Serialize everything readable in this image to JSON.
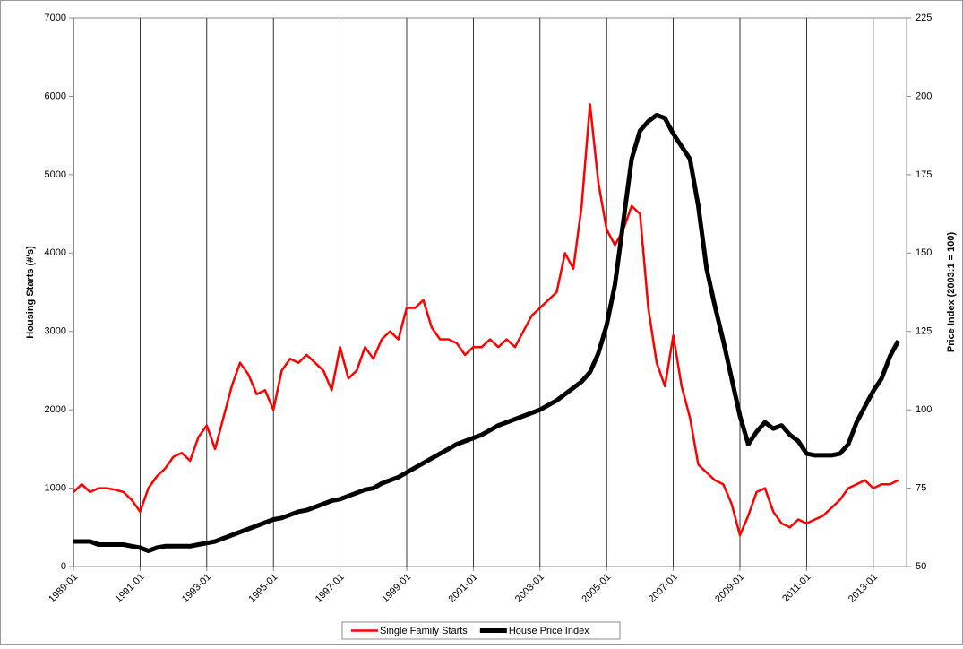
{
  "chart_data": {
    "type": "line",
    "y_label": "Housing Starts (#'s)",
    "y2_label": "Price Index (2003:1 = 100)",
    "x": [
      "1989-01",
      "1989-04",
      "1989-07",
      "1989-10",
      "1990-01",
      "1990-04",
      "1990-07",
      "1990-10",
      "1991-01",
      "1991-04",
      "1991-07",
      "1991-10",
      "1992-01",
      "1992-04",
      "1992-07",
      "1992-10",
      "1993-01",
      "1993-04",
      "1993-07",
      "1993-10",
      "1994-01",
      "1994-04",
      "1994-07",
      "1994-10",
      "1995-01",
      "1995-04",
      "1995-07",
      "1995-10",
      "1996-01",
      "1996-04",
      "1996-07",
      "1996-10",
      "1997-01",
      "1997-04",
      "1997-07",
      "1997-10",
      "1998-01",
      "1998-04",
      "1998-07",
      "1998-10",
      "1999-01",
      "1999-04",
      "1999-07",
      "1999-10",
      "2000-01",
      "2000-04",
      "2000-07",
      "2000-10",
      "2001-01",
      "2001-04",
      "2001-07",
      "2001-10",
      "2002-01",
      "2002-04",
      "2002-07",
      "2002-10",
      "2003-01",
      "2003-04",
      "2003-07",
      "2003-10",
      "2004-01",
      "2004-04",
      "2004-07",
      "2004-10",
      "2005-01",
      "2005-04",
      "2005-07",
      "2005-10",
      "2006-01",
      "2006-04",
      "2006-07",
      "2006-10",
      "2007-01",
      "2007-04",
      "2007-07",
      "2007-10",
      "2008-01",
      "2008-04",
      "2008-07",
      "2008-10",
      "2009-01",
      "2009-04",
      "2009-07",
      "2009-10",
      "2010-01",
      "2010-04",
      "2010-07",
      "2010-10",
      "2011-01",
      "2011-04",
      "2011-07",
      "2011-10",
      "2012-01",
      "2012-04",
      "2012-07",
      "2012-10",
      "2013-01",
      "2013-04",
      "2013-07",
      "2013-10"
    ],
    "series": [
      {
        "name": "Single Family Starts",
        "color": "#ff0000",
        "axis": "y",
        "values": [
          950,
          1050,
          950,
          1000,
          1000,
          980,
          950,
          850,
          700,
          1000,
          1150,
          1250,
          1400,
          1450,
          1350,
          1650,
          1800,
          1500,
          1900,
          2300,
          2600,
          2450,
          2200,
          2250,
          2000,
          2500,
          2650,
          2600,
          2700,
          2600,
          2500,
          2250,
          2800,
          2400,
          2500,
          2800,
          2650,
          2900,
          3000,
          2900,
          3300,
          3300,
          3400,
          3050,
          2900,
          2900,
          2850,
          2700,
          2800,
          2800,
          2900,
          2800,
          2900,
          2800,
          3000,
          3200,
          3300,
          3400,
          3500,
          4000,
          3800,
          4600,
          5900,
          4900,
          4300,
          4100,
          4300,
          4600,
          4500,
          3300,
          2600,
          2300,
          2950,
          2300,
          1900,
          1300,
          1200,
          1100,
          1050,
          800,
          400,
          650,
          950,
          1000,
          700,
          550,
          500,
          600,
          550,
          600,
          650,
          750,
          850,
          1000,
          1050,
          1100,
          1000,
          1050,
          1050,
          1100
        ]
      },
      {
        "name": "House Price Index",
        "color": "#000000",
        "axis": "y2",
        "values": [
          58,
          58,
          58,
          57,
          57,
          57,
          57,
          56.5,
          56,
          55,
          56,
          56.5,
          56.5,
          56.5,
          56.5,
          57,
          57.5,
          58,
          59,
          60,
          61,
          62,
          63,
          64,
          65,
          65.5,
          66.5,
          67.5,
          68,
          69,
          70,
          71,
          71.5,
          72.5,
          73.5,
          74.5,
          75,
          76.5,
          77.5,
          78.5,
          80,
          81.5,
          83,
          84.5,
          86,
          87.5,
          89,
          90,
          91,
          92,
          93.5,
          95,
          96,
          97,
          98,
          99,
          100,
          101.5,
          103,
          105,
          107,
          109,
          112,
          118,
          127,
          140,
          160,
          180,
          189,
          192,
          194,
          193,
          188,
          184,
          180,
          165,
          145,
          133,
          122,
          110,
          98,
          89,
          93,
          96,
          94,
          95,
          92,
          90,
          86,
          85.5,
          85.5,
          85.5,
          86,
          89,
          96,
          101,
          106,
          110,
          117,
          122
        ]
      }
    ],
    "xlim": [
      "1989-01",
      "2014-01"
    ],
    "xticks": [
      "1989-01",
      "1991-01",
      "1993-01",
      "1995-01",
      "1997-01",
      "1999-01",
      "2001-01",
      "2003-01",
      "2005-01",
      "2007-01",
      "2009-01",
      "2011-01",
      "2013-01"
    ],
    "ylim": [
      0,
      7000
    ],
    "yticks": [
      0,
      1000,
      2000,
      3000,
      4000,
      5000,
      6000,
      7000
    ],
    "y2lim": [
      50,
      225
    ],
    "y2ticks": [
      50,
      75,
      100,
      125,
      150,
      175,
      200,
      225
    ],
    "grid": "vertical",
    "legend": "bottom"
  }
}
